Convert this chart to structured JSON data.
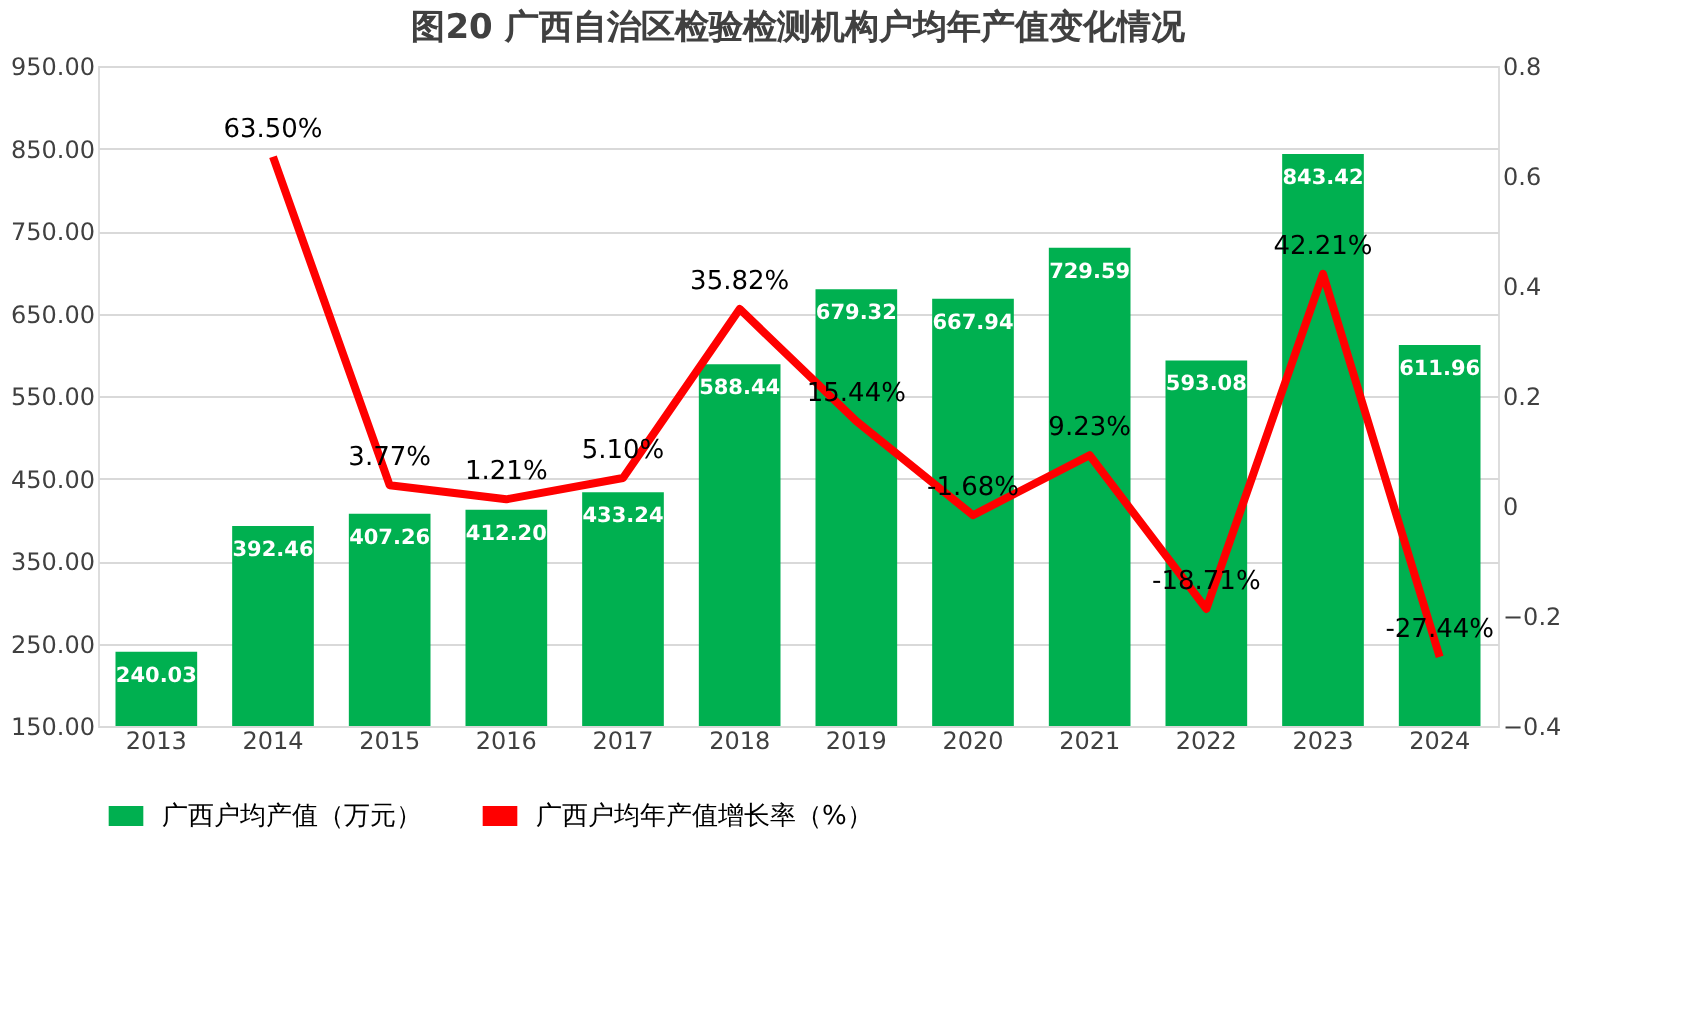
{
  "chart_data": {
    "type": "bar",
    "title": "图20  广西自治区检验检测机构户均年产值变化情况",
    "categories": [
      "2013",
      "2014",
      "2015",
      "2016",
      "2017",
      "2018",
      "2019",
      "2020",
      "2021",
      "2022",
      "2023",
      "2024"
    ],
    "series": [
      {
        "name": "广西户均产值（万元）",
        "color": "#00b050",
        "values": [
          240.03,
          392.46,
          407.26,
          412.2,
          433.24,
          588.44,
          679.32,
          667.94,
          729.59,
          593.08,
          843.42,
          611.96
        ],
        "value_labels": [
          "240.03",
          "392.46",
          "407.26",
          "412.20",
          "433.24",
          "588.44",
          "679.32",
          "667.94",
          "729.59",
          "593.08",
          "843.42",
          "611.96"
        ]
      },
      {
        "name": "广西户均年产值增长率（%）",
        "type": "line",
        "axis": "y2",
        "color": "#ff0000",
        "values": [
          null,
          0.635,
          0.0377,
          0.0121,
          0.051,
          0.3582,
          0.1544,
          -0.0168,
          0.0923,
          -0.1871,
          0.4221,
          -0.2744
        ],
        "value_labels": [
          null,
          "63.50%",
          "3.77%",
          "1.21%",
          "5.10%",
          "35.82%",
          "15.44%",
          "-1.68%",
          "9.23%",
          "-18.71%",
          "42.21%",
          "-27.44%"
        ]
      }
    ],
    "ylim": [
      150,
      950
    ],
    "yticks": [
      {
        "value": 150,
        "label": "150.00"
      },
      {
        "value": 250,
        "label": "250.00"
      },
      {
        "value": 350,
        "label": "350.00"
      },
      {
        "value": 450,
        "label": "450.00"
      },
      {
        "value": 550,
        "label": "550.00"
      },
      {
        "value": 650,
        "label": "650.00"
      },
      {
        "value": 750,
        "label": "750.00"
      },
      {
        "value": 850,
        "label": "850.00"
      },
      {
        "value": 950,
        "label": "950.00"
      }
    ],
    "y2lim": [
      -0.4,
      0.8
    ],
    "y2ticks": [
      -0.4,
      -0.2,
      {
        "value": 0,
        "label": "0"
      },
      0.2,
      0.4,
      0.6,
      0.8
    ],
    "grid": "y",
    "legend": "bottom",
    "marker": "none",
    "line_style": "solid"
  }
}
